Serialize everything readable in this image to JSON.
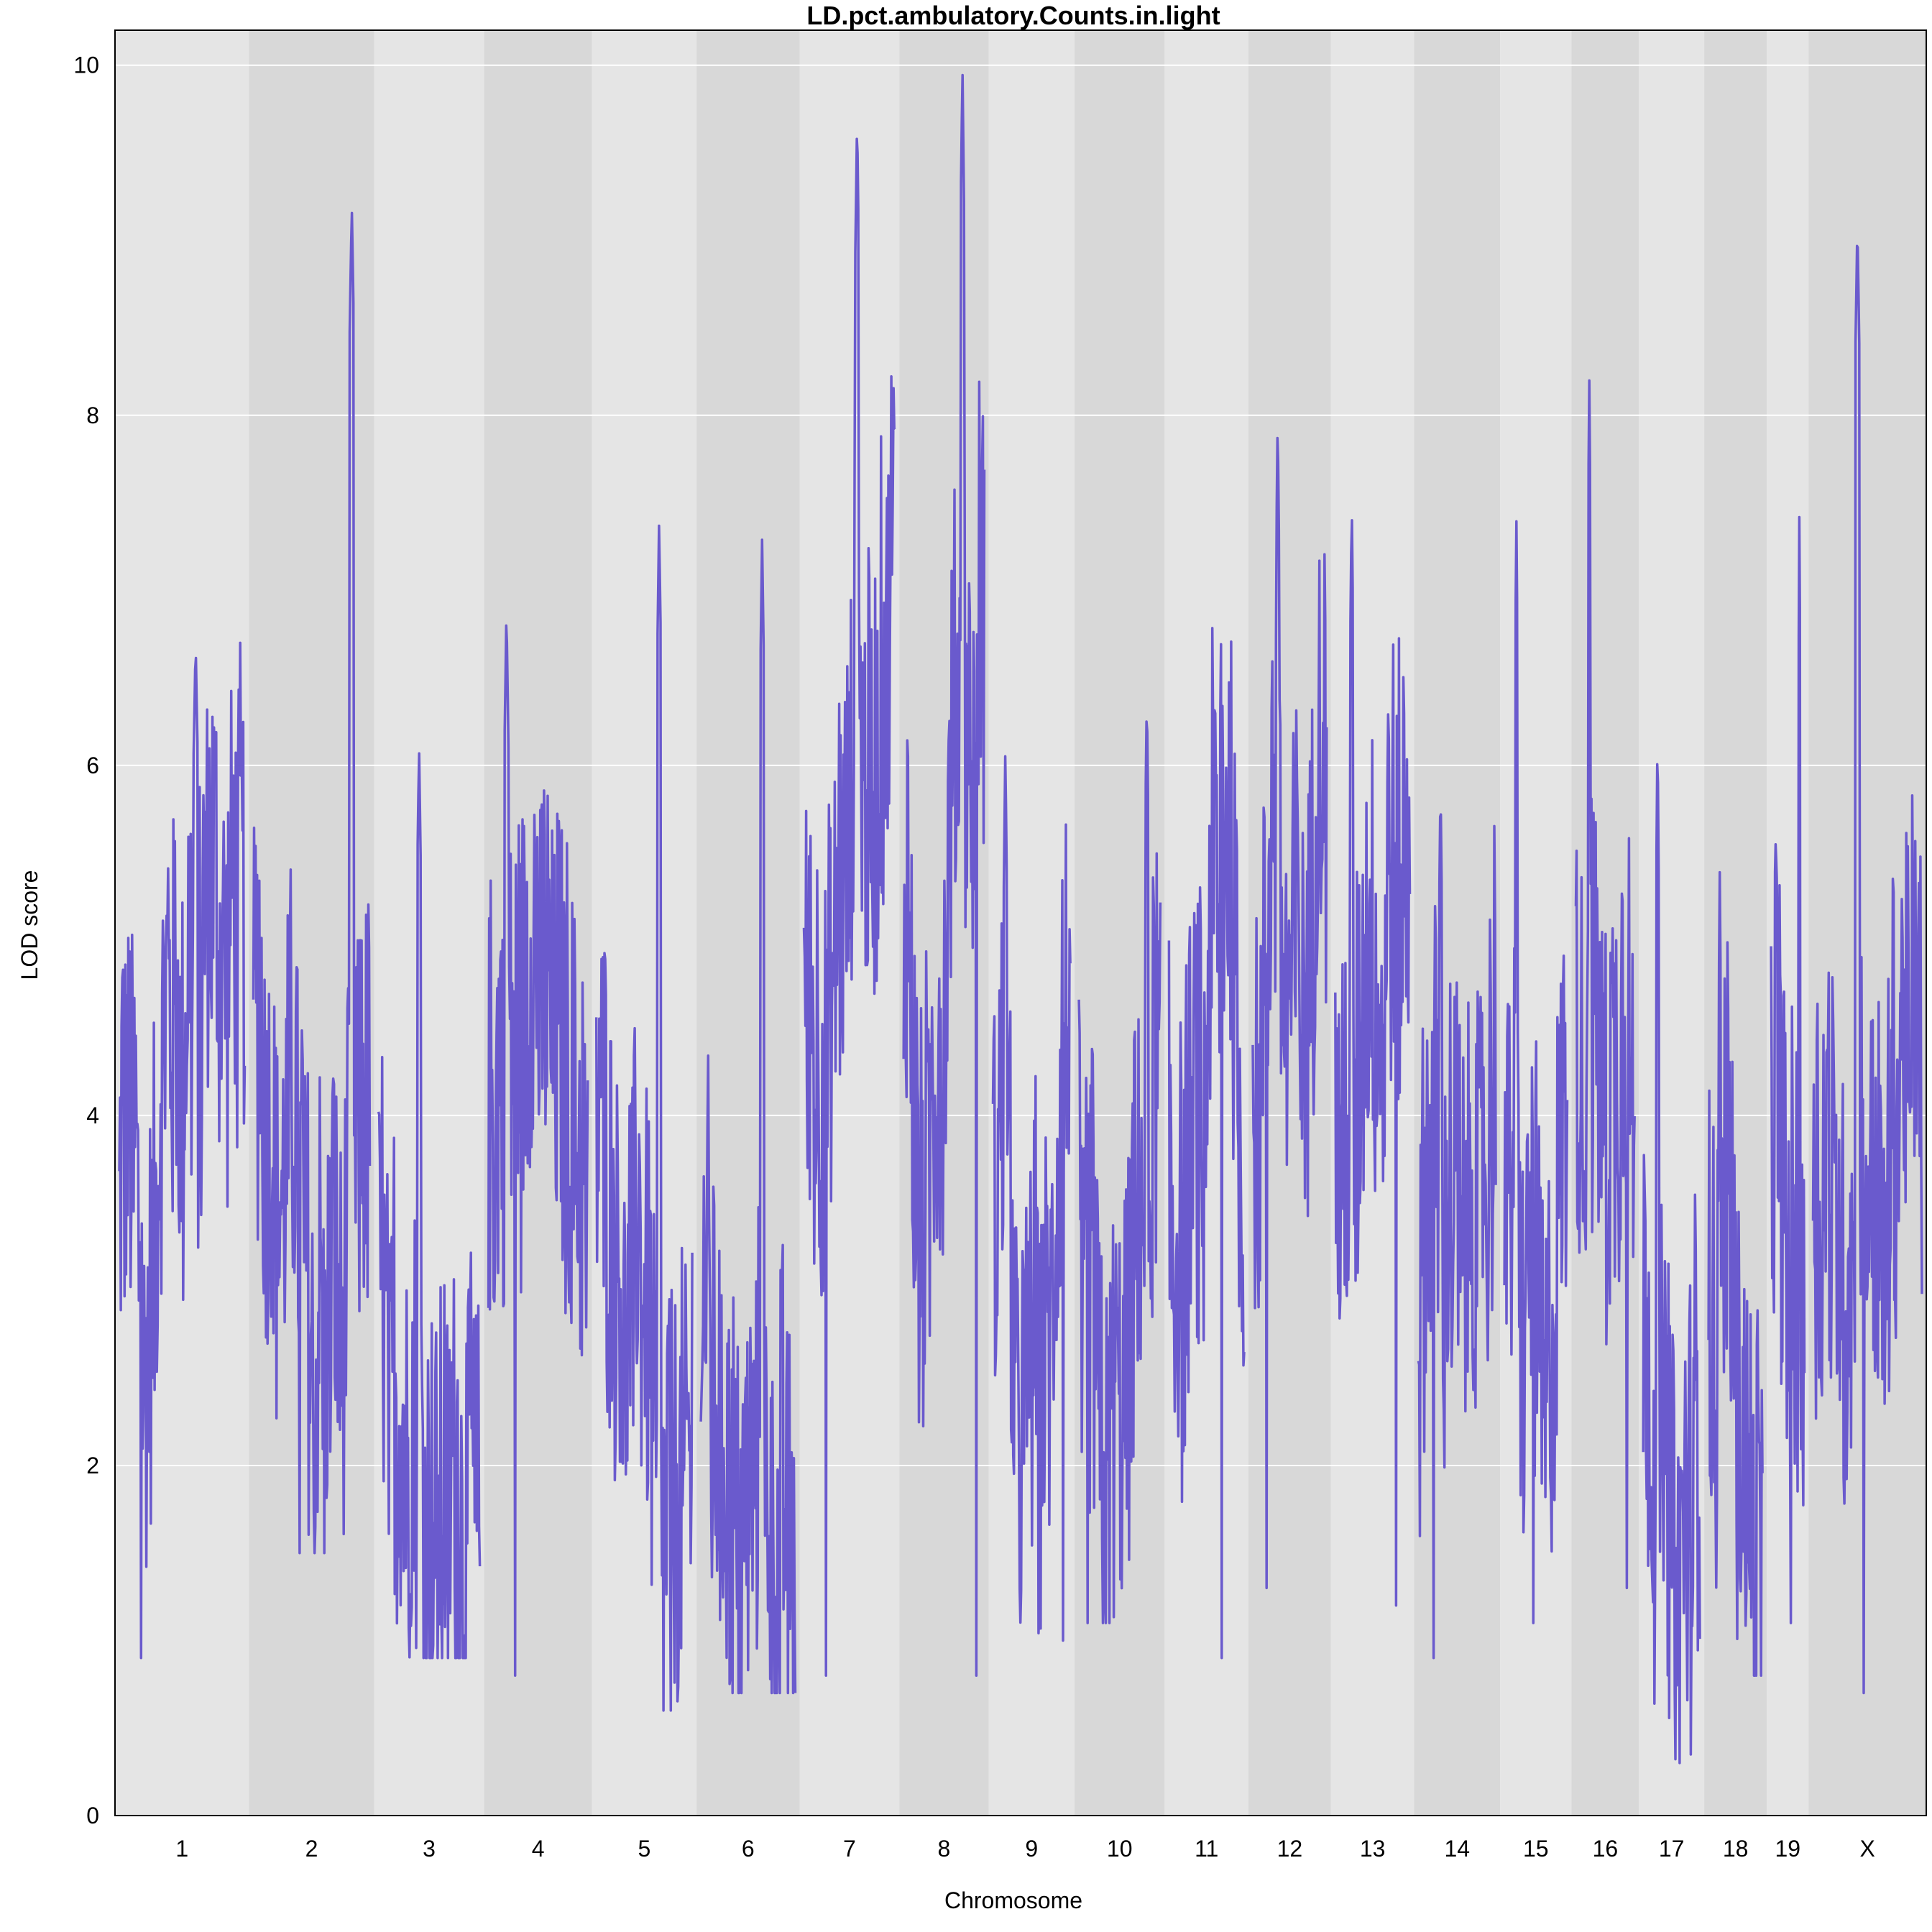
{
  "chart_data": {
    "type": "line",
    "title": "LD.pct.ambulatory.Counts.in.light",
    "xlabel": "Chromosome",
    "ylabel": "LOD score",
    "ylim": [
      0,
      10.2
    ],
    "yticks": [
      0,
      2,
      4,
      6,
      8,
      10
    ],
    "grid": true,
    "line_color": "#6a5acd",
    "band_colors": [
      "#e5e5e5",
      "#d8d8d8"
    ],
    "categories": [
      "1",
      "2",
      "3",
      "4",
      "5",
      "6",
      "7",
      "8",
      "9",
      "10",
      "11",
      "12",
      "13",
      "14",
      "15",
      "16",
      "17",
      "18",
      "19",
      "X"
    ],
    "chromosome_lengths": [
      195,
      182,
      160,
      157,
      152,
      150,
      145,
      130,
      125,
      131,
      122,
      120,
      121,
      125,
      104,
      98,
      95,
      91,
      61,
      171
    ],
    "peaks": [
      {
        "chromosome": "1",
        "lod": 6.7
      },
      {
        "chromosome": "2",
        "lod": 9.2
      },
      {
        "chromosome": "3",
        "lod": 6.1
      },
      {
        "chromosome": "4",
        "lod": 6.9
      },
      {
        "chromosome": "5",
        "lod": 7.4
      },
      {
        "chromosome": "6",
        "lod": 7.3
      },
      {
        "chromosome": "7",
        "lod": 9.7
      },
      {
        "chromosome": "8",
        "lod": 10.0
      },
      {
        "chromosome": "9",
        "lod": 6.1
      },
      {
        "chromosome": "10",
        "lod": 6.4
      },
      {
        "chromosome": "11",
        "lod": 6.9
      },
      {
        "chromosome": "12",
        "lod": 8.0
      },
      {
        "chromosome": "13",
        "lod": 7.5
      },
      {
        "chromosome": "14",
        "lod": 5.9
      },
      {
        "chromosome": "15",
        "lod": 7.4
      },
      {
        "chromosome": "16",
        "lod": 8.2
      },
      {
        "chromosome": "17",
        "lod": 6.2
      },
      {
        "chromosome": "18",
        "lod": 5.4
      },
      {
        "chromosome": "19",
        "lod": 7.5
      },
      {
        "chromosome": "X",
        "lod": 9.1
      }
    ],
    "minima": [
      {
        "chromosome": "1",
        "lod": 0.9
      },
      {
        "chromosome": "2",
        "lod": 1.5
      },
      {
        "chromosome": "3",
        "lod": 0.9
      },
      {
        "chromosome": "4",
        "lod": 0.8
      },
      {
        "chromosome": "5",
        "lod": 0.6
      },
      {
        "chromosome": "6",
        "lod": 0.7
      },
      {
        "chromosome": "7",
        "lod": 0.8
      },
      {
        "chromosome": "8",
        "lod": 0.8
      },
      {
        "chromosome": "9",
        "lod": 1.0
      },
      {
        "chromosome": "10",
        "lod": 1.1
      },
      {
        "chromosome": "11",
        "lod": 0.9
      },
      {
        "chromosome": "12",
        "lod": 1.3
      },
      {
        "chromosome": "13",
        "lod": 1.2
      },
      {
        "chromosome": "14",
        "lod": 0.9
      },
      {
        "chromosome": "15",
        "lod": 1.1
      },
      {
        "chromosome": "16",
        "lod": 1.3
      },
      {
        "chromosome": "17",
        "lod": 0.3
      },
      {
        "chromosome": "18",
        "lod": 0.8
      },
      {
        "chromosome": "19",
        "lod": 1.1
      },
      {
        "chromosome": "X",
        "lod": 0.7
      }
    ]
  }
}
